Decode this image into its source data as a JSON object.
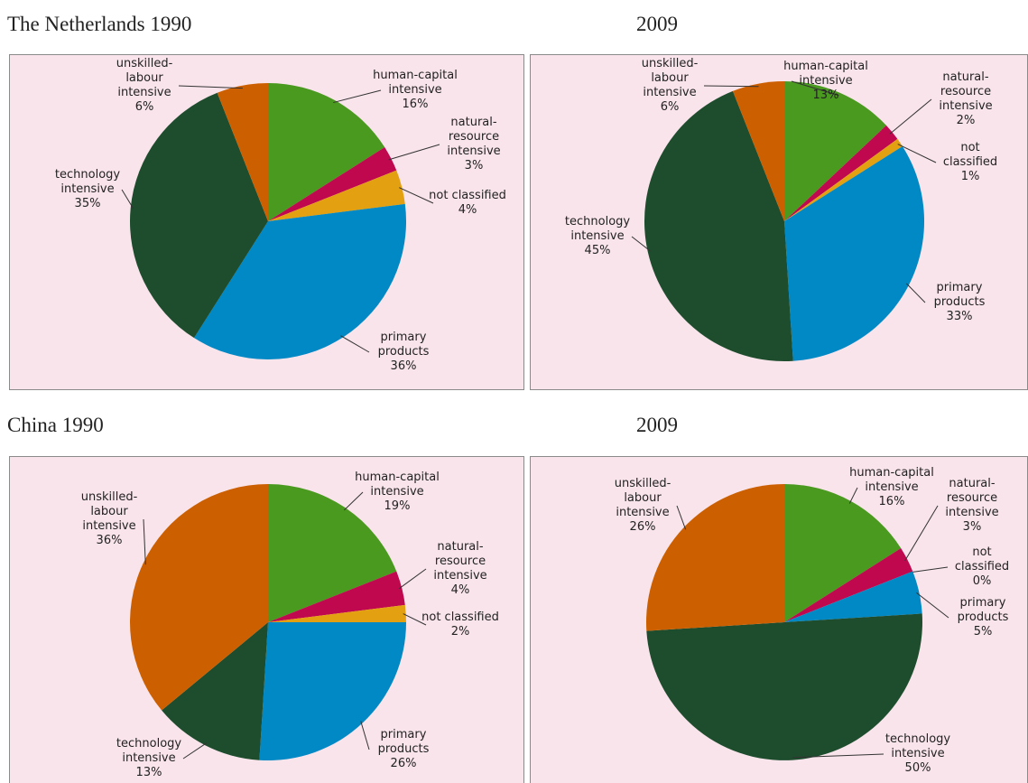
{
  "chart_data": [
    {
      "type": "pie",
      "title": "The Netherlands 1990",
      "categories": [
        "human-capital\nintensive",
        "natural-\nresource\nintensive",
        "not classified",
        "primary\nproducts",
        "technology\nintensive",
        "unskilled-\nlabour\nintensive"
      ],
      "values": [
        16,
        3,
        4,
        36,
        35,
        6
      ],
      "value_labels": [
        "16%",
        "3%",
        "4%",
        "36%",
        "35%",
        "6%"
      ],
      "colors": [
        "#4a9a1f",
        "#c0084f",
        "#e3a010",
        "#0089c4",
        "#1e4d2e",
        "#cc6000"
      ]
    },
    {
      "type": "pie",
      "title": "2009",
      "categories": [
        "human-capital\nintensive",
        "natural-\nresource\nintensive",
        "not classified",
        "primary\nproducts",
        "technology\nintensive",
        "unskilled-\nlabour\nintensive"
      ],
      "values": [
        13,
        2,
        1,
        33,
        45,
        6
      ],
      "value_labels": [
        "13%",
        "2%",
        "1%",
        "33%",
        "45%",
        "6%"
      ],
      "colors": [
        "#4a9a1f",
        "#c0084f",
        "#e3a010",
        "#0089c4",
        "#1e4d2e",
        "#cc6000"
      ]
    },
    {
      "type": "pie",
      "title": "China 1990",
      "categories": [
        "human-capital\nintensive",
        "natural-\nresource\nintensive",
        "not classified",
        "primary\nproducts",
        "technology\nintensive",
        "unskilled-\nlabour\nintensive"
      ],
      "values": [
        19,
        4,
        2,
        26,
        13,
        36
      ],
      "value_labels": [
        "19%",
        "4%",
        "2%",
        "26%",
        "13%",
        "36%"
      ],
      "colors": [
        "#4a9a1f",
        "#c0084f",
        "#e3a010",
        "#0089c4",
        "#1e4d2e",
        "#cc6000"
      ]
    },
    {
      "type": "pie",
      "title": "2009",
      "categories": [
        "human-capital\nintensive",
        "natural-\nresource\nintensive",
        "not classified",
        "primary\nproducts",
        "technology\nintensive",
        "unskilled-\nlabour\nintensive"
      ],
      "values": [
        16,
        3,
        0,
        5,
        50,
        26
      ],
      "value_labels": [
        "16%",
        "3%",
        "0%",
        "5%",
        "50%",
        "26%"
      ],
      "colors": [
        "#4a9a1f",
        "#c0084f",
        "#e3a010",
        "#0089c4",
        "#1e4d2e",
        "#cc6000"
      ]
    }
  ]
}
